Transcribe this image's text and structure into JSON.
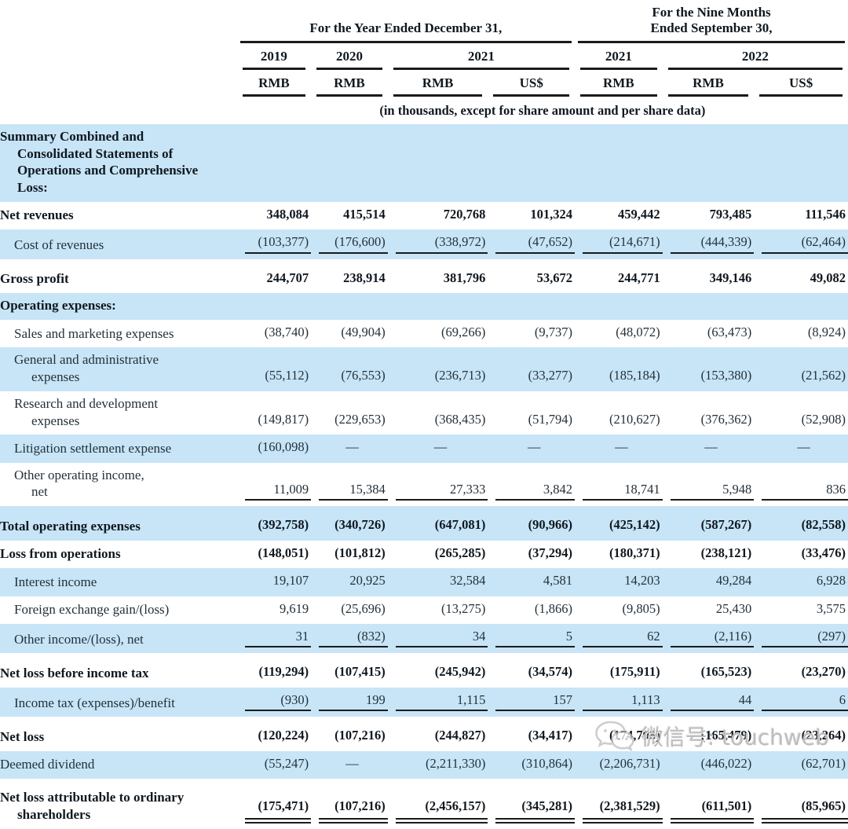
{
  "colors": {
    "stripe": "#c7e5f7",
    "line": "#1b1b1b",
    "text": "#243039",
    "bold_text": "#10181f"
  },
  "table": {
    "groups": [
      {
        "label": "For the Year Ended December 31,"
      },
      {
        "label": [
          "For the Nine Months",
          "Ended September 30,"
        ]
      }
    ],
    "years": [
      "2019",
      "2020",
      "2021",
      "2021",
      "2022"
    ],
    "currencies": [
      "RMB",
      "RMB",
      "RMB",
      "US$",
      "RMB",
      "RMB",
      "US$"
    ],
    "note": "(in thousands, except for share amount and per share data)",
    "rows": [
      {
        "label": [
          "Summary Combined and",
          "Consolidated Statements of",
          "Operations and Comprehensive",
          "Loss:"
        ],
        "bold": true,
        "indent": false,
        "bg": "blue",
        "underline": "none",
        "values": null
      },
      {
        "label": "Net revenues",
        "bold": true,
        "indent": false,
        "bg": "white",
        "underline": "none",
        "values": [
          "348,084",
          "415,514",
          "720,768",
          "101,324",
          "459,442",
          "793,485",
          "111,546"
        ]
      },
      {
        "label": "Cost of revenues",
        "bold": false,
        "indent": true,
        "bg": "blue",
        "underline": "single",
        "values": [
          "(103,377)",
          "(176,600)",
          "(338,972)",
          "(47,652)",
          "(214,671)",
          "(444,339)",
          "(62,464)"
        ]
      },
      {
        "label": "Gross profit",
        "bold": true,
        "indent": false,
        "bg": "white",
        "underline": "none",
        "values": [
          "244,707",
          "238,914",
          "381,796",
          "53,672",
          "244,771",
          "349,146",
          "49,082"
        ]
      },
      {
        "label": "Operating expenses:",
        "bold": true,
        "indent": false,
        "bg": "blue",
        "underline": "none",
        "values": null
      },
      {
        "label": "Sales and marketing expenses",
        "bold": false,
        "indent": true,
        "bg": "white",
        "underline": "none",
        "values": [
          "(38,740)",
          "(49,904)",
          "(69,266)",
          "(9,737)",
          "(48,072)",
          "(63,473)",
          "(8,924)"
        ]
      },
      {
        "label": [
          "General and administrative",
          "expenses"
        ],
        "bold": false,
        "indent": true,
        "bg": "blue",
        "underline": "none",
        "values": [
          "(55,112)",
          "(76,553)",
          "(236,713)",
          "(33,277)",
          "(185,184)",
          "(153,380)",
          "(21,562)"
        ]
      },
      {
        "label": [
          "Research and development",
          "expenses"
        ],
        "bold": false,
        "indent": true,
        "bg": "white",
        "underline": "none",
        "values": [
          "(149,817)",
          "(229,653)",
          "(368,435)",
          "(51,794)",
          "(210,627)",
          "(376,362)",
          "(52,908)"
        ]
      },
      {
        "label": "Litigation settlement expense",
        "bold": false,
        "indent": true,
        "bg": "blue",
        "underline": "none",
        "values": [
          "(160,098)",
          "—",
          "—",
          "—",
          "—",
          "—",
          "—"
        ]
      },
      {
        "label": [
          "Other operating income,",
          "net"
        ],
        "bold": false,
        "indent": true,
        "bg": "white",
        "underline": "single",
        "values": [
          "11,009",
          "15,384",
          "27,333",
          "3,842",
          "18,741",
          "5,948",
          "836"
        ]
      },
      {
        "label": "Total operating expenses",
        "bold": true,
        "indent": false,
        "bg": "blue",
        "underline": "none",
        "values": [
          "(392,758)",
          "(340,726)",
          "(647,081)",
          "(90,966)",
          "(425,142)",
          "(587,267)",
          "(82,558)"
        ]
      },
      {
        "label": "Loss from operations",
        "bold": true,
        "indent": false,
        "bg": "white",
        "underline": "none",
        "values": [
          "(148,051)",
          "(101,812)",
          "(265,285)",
          "(37,294)",
          "(180,371)",
          "(238,121)",
          "(33,476)"
        ]
      },
      {
        "label": "Interest income",
        "bold": false,
        "indent": true,
        "bg": "blue",
        "underline": "none",
        "values": [
          "19,107",
          "20,925",
          "32,584",
          "4,581",
          "14,203",
          "49,284",
          "6,928"
        ]
      },
      {
        "label": "Foreign exchange gain/(loss)",
        "bold": false,
        "indent": true,
        "bg": "white",
        "underline": "none",
        "values": [
          "9,619",
          "(25,696)",
          "(13,275)",
          "(1,866)",
          "(9,805)",
          "25,430",
          "3,575"
        ]
      },
      {
        "label": "Other income/(loss), net",
        "bold": false,
        "indent": true,
        "bg": "blue",
        "underline": "single",
        "values": [
          "31",
          "(832)",
          "34",
          "5",
          "62",
          "(2,116)",
          "(297)"
        ]
      },
      {
        "label": "Net loss before income tax",
        "bold": true,
        "indent": false,
        "bg": "white",
        "underline": "none",
        "values": [
          "(119,294)",
          "(107,415)",
          "(245,942)",
          "(34,574)",
          "(175,911)",
          "(165,523)",
          "(23,270)"
        ]
      },
      {
        "label": "Income tax (expenses)/benefit",
        "bold": false,
        "indent": true,
        "bg": "blue",
        "underline": "single",
        "values": [
          "(930)",
          "199",
          "1,115",
          "157",
          "1,113",
          "44",
          "6"
        ]
      },
      {
        "label": "Net loss",
        "bold": true,
        "indent": false,
        "bg": "white",
        "underline": "none",
        "values": [
          "(120,224)",
          "(107,216)",
          "(244,827)",
          "(34,417)",
          "(174,798)",
          "(165,479)",
          "(23,264)"
        ]
      },
      {
        "label": "Deemed dividend",
        "bold": false,
        "indent": false,
        "bg": "blue",
        "underline": "none",
        "values": [
          "(55,247)",
          "—",
          "(2,211,330)",
          "(310,864)",
          "(2,206,731)",
          "(446,022)",
          "(62,701)"
        ]
      },
      {
        "label": [
          "Net loss attributable to ordinary",
          "shareholders"
        ],
        "bold": true,
        "indent": false,
        "bg": "white",
        "underline": "double",
        "values": [
          "(175,471)",
          "(107,216)",
          "(2,456,157)",
          "(345,281)",
          "(2,381,529)",
          "(611,501)",
          "(85,965)"
        ]
      }
    ]
  },
  "watermark": {
    "icon": "wechat-icon",
    "text": "微信号: touchweb"
  }
}
